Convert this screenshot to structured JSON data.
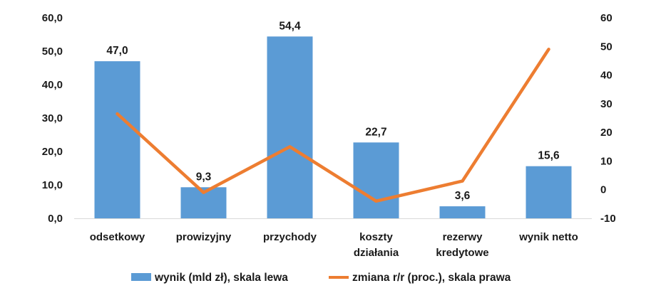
{
  "chart_data": {
    "type": "bar",
    "categories": [
      [
        "odsetkowy"
      ],
      [
        "prowizyjny"
      ],
      [
        "przychody"
      ],
      [
        "koszty",
        "działania"
      ],
      [
        "rezerwy",
        "kredytowe"
      ],
      [
        "wynik netto"
      ]
    ],
    "series": [
      {
        "name": "wynik (mld zł), skala lewa",
        "type": "bar",
        "axis": "left",
        "color": "#5b9bd5",
        "values": [
          47.0,
          9.3,
          54.4,
          22.7,
          3.6,
          15.6
        ],
        "labels": [
          "47,0",
          "9,3",
          "54,4",
          "22,7",
          "3,6",
          "15,6"
        ]
      },
      {
        "name": "zmiana r/r (proc.), skala prawa",
        "type": "line",
        "axis": "right",
        "color": "#ed7d31",
        "values": [
          26.5,
          -1,
          15,
          -4,
          3,
          49
        ]
      }
    ],
    "left_axis": {
      "ylim": [
        0,
        60
      ],
      "ticks": [
        "0,0",
        "10,0",
        "20,0",
        "30,0",
        "40,0",
        "50,0",
        "60,0"
      ]
    },
    "right_axis": {
      "ylim": [
        -10,
        60
      ],
      "ticks": [
        "-10",
        "0",
        "10",
        "20",
        "30",
        "40",
        "50",
        "60"
      ]
    },
    "grid": false,
    "legend_position": "bottom"
  }
}
